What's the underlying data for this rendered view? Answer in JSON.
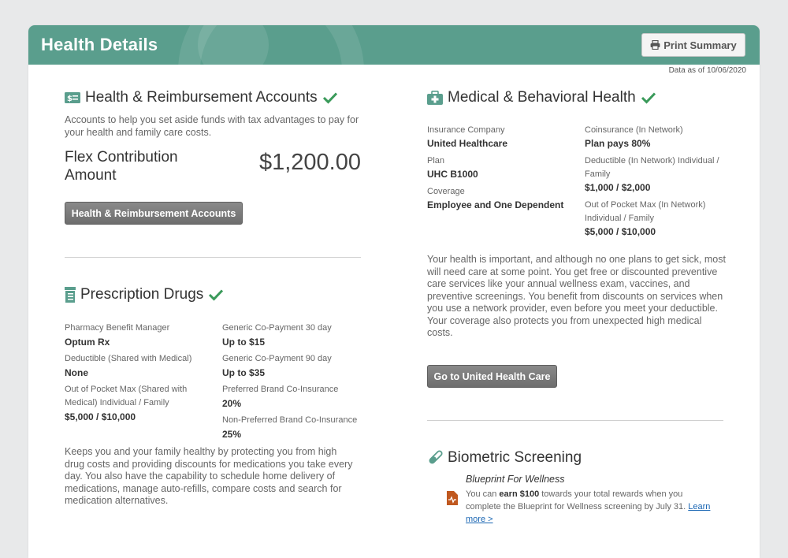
{
  "header": {
    "title": "Health Details",
    "print_label": "Print Summary",
    "data_asof": "Data as of 10/06/2020"
  },
  "hra": {
    "title": "Health & Reimbursement Accounts",
    "description": "Accounts to help you set aside funds with tax advantages to pay for your health and family care costs.",
    "flex_label": "Flex Contribution Amount",
    "flex_amount": "$1,200.00",
    "button": "Health & Reimbursement Accounts"
  },
  "rx": {
    "title": "Prescription Drugs",
    "left": [
      {
        "label": "Pharmacy Benefit Manager",
        "value": "Optum Rx"
      },
      {
        "label": "Deductible (Shared with Medical)",
        "value": "None"
      },
      {
        "label": "Out of Pocket Max (Shared with Medical) Individual / Family",
        "value": "$5,000 / $10,000"
      }
    ],
    "right": [
      {
        "label": "Generic Co-Payment 30 day",
        "value": "Up to $15"
      },
      {
        "label": "Generic Co-Payment 90 day",
        "value": "Up to $35"
      },
      {
        "label": "Preferred Brand Co-Insurance",
        "value": "20%"
      },
      {
        "label": "Non-Preferred Brand Co-Insurance",
        "value": "25%"
      }
    ],
    "description": "Keeps you and your family healthy by protecting you from high drug costs and providing discounts for medications you take every day. You also have the capability to schedule home delivery of medications, manage auto-refills, compare costs and search for medication alternatives."
  },
  "medical": {
    "title": "Medical & Behavioral Health",
    "left": [
      {
        "label": "Insurance Company",
        "value": "United Healthcare"
      },
      {
        "label": "Plan",
        "value": "UHC B1000"
      },
      {
        "label": "Coverage",
        "value": "Employee and One Dependent"
      }
    ],
    "right": [
      {
        "label": "Coinsurance (In Network)",
        "value": "Plan pays 80%"
      },
      {
        "label": "Deductible (In Network) Individual / Family",
        "value": "$1,000 / $2,000"
      },
      {
        "label": "Out of Pocket Max (In Network) Individual / Family",
        "value": "$5,000 / $10,000"
      }
    ],
    "description": "Your health is important, and although no one plans to get sick, most will need care at some point. You get free or discounted preventive care services like your annual wellness exam, vaccines, and preventive screenings. You benefit from discounts on services when you use a network provider, even before you meet your deductible. Your coverage also protects you from unexpected high medical costs.",
    "button": "Go to United Health Care"
  },
  "biometric": {
    "title": "Biometric Screening",
    "program": "Blueprint For Wellness",
    "text_before": "You can ",
    "text_bold": "earn $100",
    "text_after": " towards your total rewards when you complete the Blueprint for Wellness screening by July 31. ",
    "link": "Learn more >"
  },
  "colors": {
    "header": "#5a9e8d",
    "check": "#3a9a5a",
    "icon": "#5a9e8d",
    "button": "#777777",
    "biometric_icon": "#c0581f"
  },
  "icons": [
    "printer-icon",
    "money-card-icon",
    "medical-kit-icon",
    "pharmacy-bottle-icon",
    "check-icon",
    "test-tube-icon",
    "health-chart-icon"
  ]
}
